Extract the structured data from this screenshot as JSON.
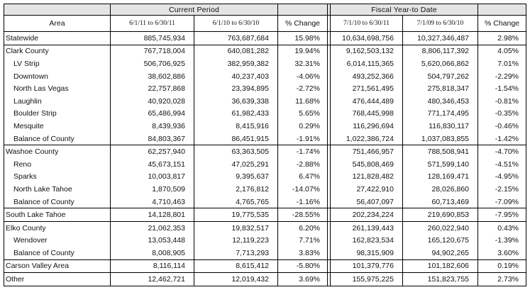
{
  "headers": {
    "area": "Area",
    "current_period": "Current Period",
    "fiscal_ytd": "Fiscal Year-to Date",
    "cp_col1": "6/1/11 to 6/30/11",
    "cp_col2": "6/1/10 to 6/30/10",
    "cp_change": "% Change",
    "fy_col1": "7/1/10 to 6/30/11",
    "fy_col2": "7/1/09 to 6/30/10",
    "fy_change": "% Change"
  },
  "rows": [
    {
      "area": "Statewide",
      "level": 0,
      "group_start": true,
      "cp1": "885,745,934",
      "cp2": "763,687,684",
      "cpc": "15.98%",
      "fy1": "10,634,698,756",
      "fy2": "10,327,346,487",
      "fyc": "2.98%"
    },
    {
      "area": "Clark County",
      "level": 0,
      "group_start": true,
      "cp1": "767,718,004",
      "cp2": "640,081,282",
      "cpc": "19.94%",
      "fy1": "9,162,503,132",
      "fy2": "8,806,117,392",
      "fyc": "4.05%"
    },
    {
      "area": "LV Strip",
      "level": 1,
      "group_start": false,
      "cp1": "506,706,925",
      "cp2": "382,959,382",
      "cpc": "32.31%",
      "fy1": "6,014,115,365",
      "fy2": "5,620,066,862",
      "fyc": "7.01%"
    },
    {
      "area": "Downtown",
      "level": 1,
      "group_start": false,
      "cp1": "38,602,886",
      "cp2": "40,237,403",
      "cpc": "-4.06%",
      "fy1": "493,252,366",
      "fy2": "504,797,262",
      "fyc": "-2.29%"
    },
    {
      "area": "North Las Vegas",
      "level": 1,
      "group_start": false,
      "cp1": "22,757,868",
      "cp2": "23,394,895",
      "cpc": "-2.72%",
      "fy1": "271,561,495",
      "fy2": "275,818,347",
      "fyc": "-1.54%"
    },
    {
      "area": "Laughlin",
      "level": 1,
      "group_start": false,
      "cp1": "40,920,028",
      "cp2": "36,639,338",
      "cpc": "11.68%",
      "fy1": "476,444,489",
      "fy2": "480,346,453",
      "fyc": "-0.81%"
    },
    {
      "area": "Boulder Strip",
      "level": 1,
      "group_start": false,
      "cp1": "65,486,994",
      "cp2": "61,982,433",
      "cpc": "5.65%",
      "fy1": "768,445,998",
      "fy2": "771,174,495",
      "fyc": "-0.35%"
    },
    {
      "area": "Mesquite",
      "level": 1,
      "group_start": false,
      "cp1": "8,439,936",
      "cp2": "8,415,916",
      "cpc": "0.29%",
      "fy1": "116,296,694",
      "fy2": "116,830,117",
      "fyc": "-0.46%"
    },
    {
      "area": "Balance of County",
      "level": 1,
      "group_start": false,
      "cp1": "84,803,367",
      "cp2": "86,451,915",
      "cpc": "-1.91%",
      "fy1": "1,022,386,724",
      "fy2": "1,037,083,855",
      "fyc": "-1.42%"
    },
    {
      "area": "Washoe County",
      "level": 0,
      "group_start": true,
      "cp1": "62,257,940",
      "cp2": "63,363,505",
      "cpc": "-1.74%",
      "fy1": "751,466,957",
      "fy2": "788,508,941",
      "fyc": "-4.70%"
    },
    {
      "area": "Reno",
      "level": 1,
      "group_start": false,
      "cp1": "45,673,151",
      "cp2": "47,025,291",
      "cpc": "-2.88%",
      "fy1": "545,808,469",
      "fy2": "571,599,140",
      "fyc": "-4.51%"
    },
    {
      "area": "Sparks",
      "level": 1,
      "group_start": false,
      "cp1": "10,003,817",
      "cp2": "9,395,637",
      "cpc": "6.47%",
      "fy1": "121,828,482",
      "fy2": "128,169,471",
      "fyc": "-4.95%"
    },
    {
      "area": "North Lake Tahoe",
      "level": 1,
      "group_start": false,
      "cp1": "1,870,509",
      "cp2": "2,176,812",
      "cpc": "-14.07%",
      "fy1": "27,422,910",
      "fy2": "28,026,860",
      "fyc": "-2.15%"
    },
    {
      "area": "Balance of County",
      "level": 1,
      "group_start": false,
      "cp1": "4,710,463",
      "cp2": "4,765,765",
      "cpc": "-1.16%",
      "fy1": "56,407,097",
      "fy2": "60,713,469",
      "fyc": "-7.09%"
    },
    {
      "area": "South Lake Tahoe",
      "level": 0,
      "group_start": true,
      "cp1": "14,128,801",
      "cp2": "19,775,535",
      "cpc": "-28.55%",
      "fy1": "202,234,224",
      "fy2": "219,690,853",
      "fyc": "-7.95%"
    },
    {
      "area": "Elko County",
      "level": 0,
      "group_start": true,
      "cp1": "21,062,353",
      "cp2": "19,832,517",
      "cpc": "6.20%",
      "fy1": "261,139,443",
      "fy2": "260,022,940",
      "fyc": "0.43%"
    },
    {
      "area": "Wendover",
      "level": 1,
      "group_start": false,
      "cp1": "13,053,448",
      "cp2": "12,119,223",
      "cpc": "7.71%",
      "fy1": "162,823,534",
      "fy2": "165,120,675",
      "fyc": "-1.39%"
    },
    {
      "area": "Balance of County",
      "level": 1,
      "group_start": false,
      "cp1": "8,008,905",
      "cp2": "7,713,293",
      "cpc": "3.83%",
      "fy1": "98,315,909",
      "fy2": "94,902,265",
      "fyc": "3.60%"
    },
    {
      "area": "Carson Valley Area",
      "level": 0,
      "group_start": true,
      "cp1": "8,116,114",
      "cp2": "8,615,412",
      "cpc": "-5.80%",
      "fy1": "101,379,776",
      "fy2": "101,182,606",
      "fyc": "0.19%"
    },
    {
      "area": "Other",
      "level": 0,
      "group_start": true,
      "cp1": "12,462,721",
      "cp2": "12,019,432",
      "cpc": "3.69%",
      "fy1": "155,975,225",
      "fy2": "151,823,755",
      "fyc": "2.73%"
    }
  ]
}
